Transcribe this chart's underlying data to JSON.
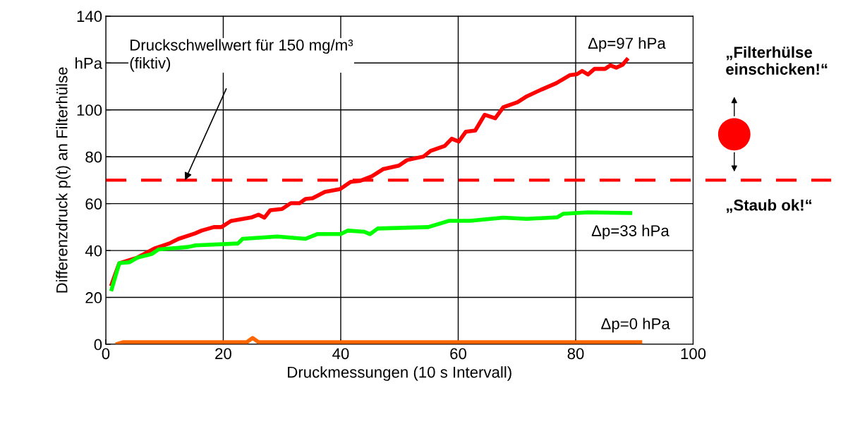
{
  "chart_data": {
    "type": "line",
    "xlabel": "Druckmessungen (10 s Intervall)",
    "ylabel": "Differenzdruck p(t) an Filterhülse",
    "xlim": [
      0,
      100
    ],
    "xticks": [
      0,
      20,
      40,
      60,
      80,
      100
    ],
    "ylim": [
      0,
      140
    ],
    "yticks": [
      0,
      20,
      40,
      60,
      80,
      100,
      {
        "value": 120,
        "label": "hPa"
      },
      140
    ],
    "grid": true,
    "marker": "none",
    "line_style": "solid",
    "series": [
      {
        "color": "#ff0000",
        "x": [
          1,
          2.3,
          5.4,
          8.4,
          10.8,
          12.4,
          15.2,
          16.3,
          18.4,
          19.7,
          21.3,
          24.9,
          26,
          27,
          28,
          30,
          31.5,
          33,
          34,
          35.2,
          37.3,
          39.9,
          41.7,
          43.3,
          45.3,
          47.2,
          49.9,
          51.3,
          54.1,
          55.3,
          57.7,
          58.9,
          60.1,
          61.3,
          62.9,
          64.5,
          66.3,
          67.7,
          70.1,
          71.7,
          74.2,
          76.7,
          79,
          80.2,
          81.1,
          82.1,
          83.2,
          85,
          85.9,
          86.9,
          88,
          88.7
        ],
        "values": [
          25.6,
          34.6,
          37,
          41,
          43,
          45,
          47.3,
          48.5,
          50,
          50,
          52.6,
          54.2,
          55.3,
          54,
          57.2,
          57.7,
          60.2,
          60.2,
          62,
          62.3,
          65,
          66.2,
          69.3,
          69.7,
          71.7,
          74.7,
          76.2,
          78.6,
          80.1,
          82.5,
          84.6,
          87.7,
          86.5,
          90.7,
          91.2,
          97.9,
          96.4,
          101.2,
          103.3,
          105.8,
          108.7,
          111.4,
          114.8,
          115.2,
          116.6,
          115.1,
          117.5,
          117.5,
          119,
          118,
          119.3,
          121.4
        ]
      },
      {
        "color": "#00ff00",
        "x": [
          1,
          2.3,
          4,
          5.4,
          7.8,
          9,
          14,
          15.3,
          22.5,
          23.3,
          29.2,
          34,
          36,
          40,
          41.2,
          44,
          45,
          46.3,
          54.9,
          58.5,
          62,
          67.7,
          71.7,
          76.9,
          77.9,
          82.1,
          89.3
        ],
        "values": [
          23.5,
          34.6,
          35,
          37,
          38.5,
          40.5,
          41.5,
          42.2,
          43,
          45,
          46,
          45,
          47,
          47,
          48.5,
          48,
          47,
          49.4,
          50,
          52.7,
          52.7,
          54,
          53.5,
          54.2,
          55.7,
          56.3,
          56
        ]
      },
      {
        "color": "#ff6600",
        "x": [
          2,
          3,
          24,
          25,
          26,
          91
        ],
        "values": [
          0.2,
          0.9,
          0.9,
          2.7,
          0.9,
          0.9
        ]
      }
    ],
    "ref_lines": [
      {
        "axis": "y",
        "value": 70,
        "label": "Druckschwellwert für 150 mg/m³\n(fiktiv)",
        "color": "#ff0000",
        "line_style": "dashed"
      }
    ],
    "annotations": [
      {
        "text": "Δp=97 hPa",
        "x": 88.7,
        "y": 121.4
      },
      {
        "text": "Δp=33 hPa",
        "x": 89.3,
        "y": 56
      },
      {
        "text": "Δp=0 hPa",
        "x": 91,
        "y": 0.9
      },
      "„Filterhülse\neinschicken!“",
      "„Staub ok!“"
    ]
  }
}
